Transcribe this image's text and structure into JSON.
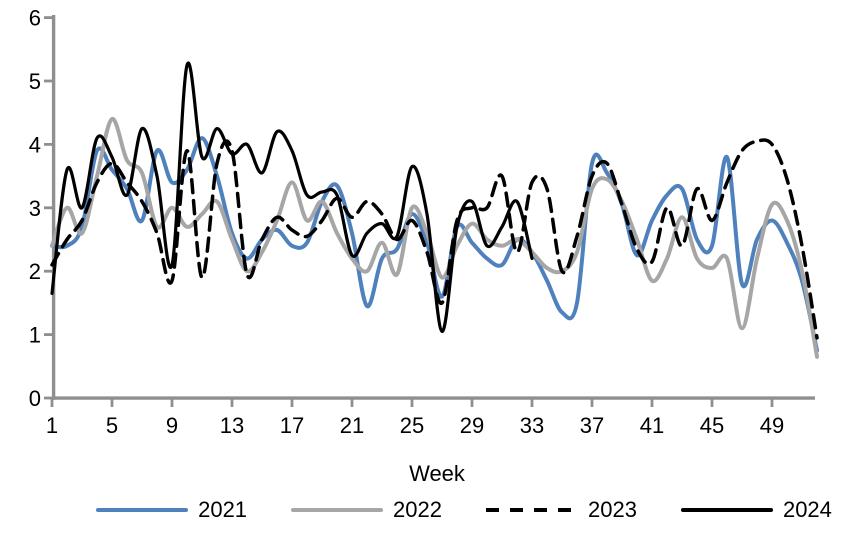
{
  "chart_data": {
    "type": "line",
    "title": "",
    "xlabel": "Week",
    "ylabel": "",
    "xlim": [
      1,
      52
    ],
    "ylim": [
      0,
      6
    ],
    "grid": false,
    "legend_position": "bottom",
    "axis_color": "#8f8f8f",
    "text_color": "#000000",
    "y_ticks": [
      0,
      1,
      2,
      3,
      4,
      5,
      6
    ],
    "x_ticks": [
      1,
      5,
      9,
      13,
      17,
      21,
      25,
      29,
      33,
      37,
      41,
      45,
      49
    ],
    "x": [
      1,
      2,
      3,
      4,
      5,
      6,
      7,
      8,
      9,
      10,
      11,
      12,
      13,
      14,
      15,
      16,
      17,
      18,
      19,
      20,
      21,
      22,
      23,
      24,
      25,
      26,
      27,
      28,
      29,
      30,
      31,
      32,
      33,
      34,
      35,
      36,
      37,
      38,
      39,
      40,
      41,
      42,
      43,
      44,
      45,
      46,
      47,
      48,
      49,
      50,
      51,
      52
    ],
    "series": [
      {
        "name": "2021",
        "color": "#4f81bd",
        "style": "solid",
        "width": 4,
        "values": [
          2.4,
          2.4,
          2.7,
          3.9,
          3.6,
          3.3,
          2.8,
          3.9,
          3.4,
          3.6,
          4.1,
          3.5,
          2.6,
          2.2,
          2.5,
          2.65,
          2.4,
          2.45,
          3.1,
          3.35,
          2.6,
          1.45,
          2.2,
          2.35,
          2.9,
          2.45,
          1.6,
          2.7,
          2.45,
          2.2,
          2.1,
          2.5,
          2.3,
          1.85,
          1.35,
          1.5,
          3.7,
          3.55,
          3.05,
          2.25,
          2.8,
          3.2,
          3.3,
          2.5,
          2.4,
          3.8,
          1.8,
          2.5,
          2.8,
          2.45,
          1.85,
          0.75
        ]
      },
      {
        "name": "2022",
        "color": "#a6a6a6",
        "style": "solid",
        "width": 4,
        "values": [
          2.4,
          3.0,
          2.6,
          3.5,
          4.4,
          3.75,
          3.55,
          2.7,
          3.0,
          2.7,
          2.9,
          3.1,
          2.5,
          2.0,
          2.3,
          2.8,
          3.4,
          2.8,
          3.1,
          2.6,
          2.2,
          2.0,
          2.45,
          1.95,
          3.0,
          2.6,
          1.9,
          2.4,
          2.75,
          2.5,
          2.4,
          2.5,
          2.3,
          2.05,
          2.0,
          2.3,
          3.3,
          3.45,
          3.1,
          2.5,
          1.85,
          2.2,
          2.85,
          2.2,
          2.05,
          2.2,
          1.1,
          2.2,
          3.05,
          2.8,
          2.0,
          0.65
        ]
      },
      {
        "name": "2023",
        "color": "#000000",
        "style": "dashed",
        "width": 3.5,
        "values": [
          2.1,
          2.5,
          2.8,
          3.4,
          3.7,
          3.4,
          3.1,
          2.6,
          1.85,
          3.9,
          1.9,
          3.7,
          3.9,
          1.95,
          2.5,
          2.85,
          2.65,
          2.55,
          2.8,
          3.15,
          2.85,
          3.1,
          2.9,
          2.5,
          2.8,
          2.3,
          1.5,
          2.8,
          3.0,
          3.0,
          3.5,
          2.3,
          3.4,
          3.3,
          2.0,
          2.55,
          3.5,
          3.7,
          3.05,
          2.35,
          2.15,
          3.0,
          2.4,
          3.3,
          2.8,
          3.4,
          3.9,
          4.05,
          4.0,
          3.45,
          2.4,
          0.95
        ]
      },
      {
        "name": "2024",
        "color": "#000000",
        "style": "solid",
        "width": 3.2,
        "values": [
          1.65,
          3.6,
          3.0,
          4.1,
          3.8,
          3.2,
          4.25,
          3.5,
          2.1,
          5.25,
          3.8,
          4.25,
          3.85,
          4.0,
          3.55,
          4.2,
          3.9,
          3.2,
          3.25,
          3.2,
          2.25,
          2.6,
          2.75,
          2.55,
          3.65,
          2.9,
          1.05,
          2.7,
          3.1,
          2.4,
          2.7,
          3.1,
          2.2
        ]
      }
    ]
  }
}
